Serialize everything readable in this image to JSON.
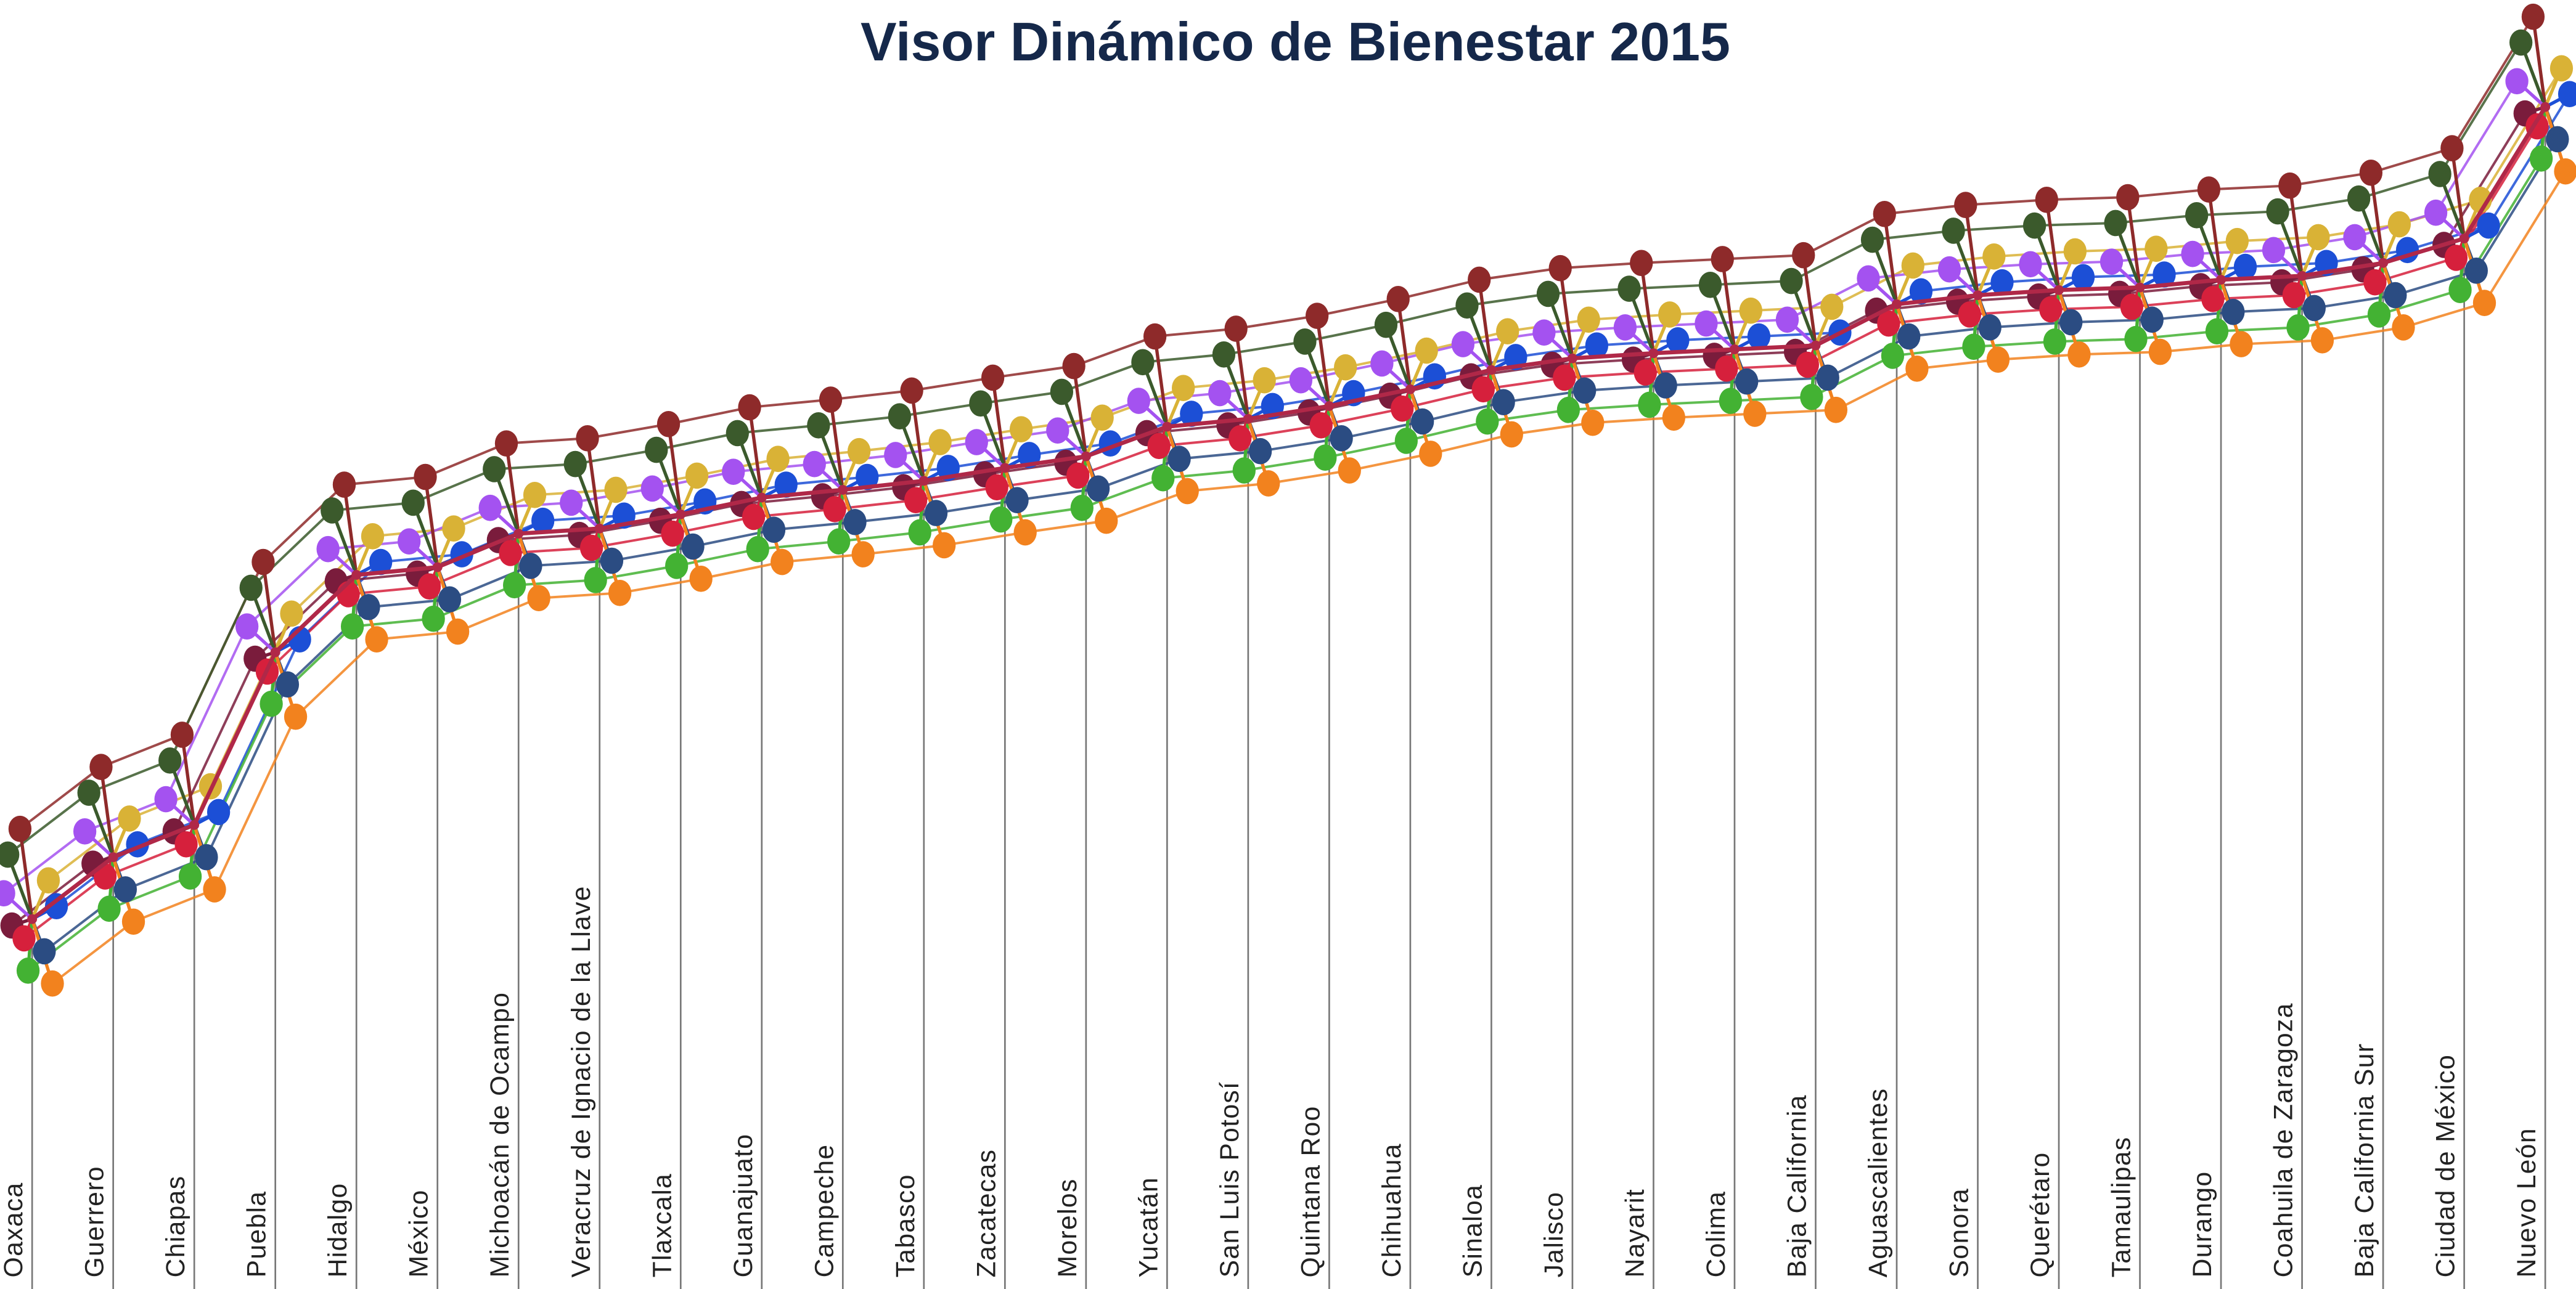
{
  "chart_data": {
    "type": "spoke",
    "title": "Visor Dinámico de Bienestar 2015",
    "categories": [
      "Oaxaca",
      "Guerrero",
      "Chiapas",
      "Puebla",
      "Hidalgo",
      "México",
      "Michoacán de Ocampo",
      "Veracruz de Ignacio de la Llave",
      "Tlaxcala",
      "Guanajuato",
      "Campeche",
      "Tabasco",
      "Zacatecas",
      "Morelos",
      "Yucatán",
      "San Luis Potosí",
      "Quintana Roo",
      "Chihuahua",
      "Sinaloa",
      "Jalisco",
      "Nayarit",
      "Colima",
      "Baja California",
      "Aguascalientes",
      "Sonora",
      "Querétaro",
      "Tamaulipas",
      "Durango",
      "Coahuila de Zaragoza",
      "Baja California Sur",
      "Ciudad de México",
      "Nuevo León"
    ],
    "values": [
      28.7,
      33.5,
      36,
      49.4,
      55.4,
      56,
      58.6,
      59,
      60.1,
      61.4,
      62,
      62.7,
      63.7,
      64.6,
      66.9,
      67.5,
      68.5,
      69.8,
      71.3,
      72.2,
      72.6,
      72.9,
      73.2,
      76.4,
      77.1,
      77.5,
      77.7,
      78.3,
      78.6,
      79.6,
      81.5,
      91.7
    ],
    "color": "#b02848",
    "ylim": [
      0,
      100
    ],
    "series": [
      {
        "color": "#8e2a2a",
        "values": [
          35.7,
          40.5,
          43,
          56.4,
          62.4,
          63,
          65.6,
          66,
          67.1,
          68.4,
          69,
          69.7,
          70.7,
          71.6,
          73.9,
          74.5,
          75.5,
          76.8,
          78.3,
          79.2,
          79.6,
          79.9,
          80.2,
          83.4,
          84.1,
          84.5,
          84.7,
          85.3,
          85.6,
          86.6,
          88.5,
          98.7
        ]
      },
      {
        "color": "#3b5a2c",
        "values": [
          33.7,
          38.5,
          41,
          54.4,
          60.4,
          61,
          63.6,
          64,
          65.1,
          66.4,
          67,
          67.7,
          68.7,
          69.6,
          71.9,
          72.5,
          73.5,
          74.8,
          76.3,
          77.2,
          77.6,
          77.9,
          78.2,
          81.4,
          82.1,
          82.5,
          82.7,
          83.3,
          83.6,
          84.6,
          86.5,
          96.7
        ]
      },
      {
        "color": "#d9b236",
        "values": [
          31.7,
          36.5,
          39,
          52.4,
          58.4,
          59,
          61.6,
          62,
          63.1,
          64.4,
          65,
          65.7,
          66.7,
          67.6,
          69.9,
          70.5,
          71.5,
          72.8,
          74.3,
          75.2,
          75.6,
          75.9,
          76.2,
          79.4,
          80.1,
          80.5,
          80.7,
          81.3,
          81.6,
          82.6,
          84.5,
          94.7
        ]
      },
      {
        "color": "#a452f0",
        "values": [
          30.7,
          35.5,
          38,
          51.4,
          57.4,
          58,
          60.6,
          61,
          62.1,
          63.4,
          64,
          64.7,
          65.7,
          66.6,
          68.9,
          69.5,
          70.5,
          71.8,
          73.3,
          74.2,
          74.6,
          74.9,
          75.2,
          78.4,
          79.1,
          79.5,
          79.7,
          80.3,
          80.6,
          81.6,
          83.5,
          93.7
        ]
      },
      {
        "color": "#1c4fd6",
        "values": [
          29.7,
          34.5,
          37,
          50.4,
          56.4,
          57,
          59.6,
          60,
          61.1,
          62.4,
          63,
          63.7,
          64.7,
          65.6,
          67.9,
          68.5,
          69.5,
          70.8,
          72.3,
          73.2,
          73.6,
          73.9,
          74.2,
          77.4,
          78.1,
          78.5,
          78.7,
          79.3,
          79.6,
          80.6,
          82.5,
          92.7
        ]
      },
      {
        "color": "#7a1c3c",
        "values": [
          28.2,
          33,
          35.5,
          48.9,
          54.9,
          55.5,
          58.1,
          58.5,
          59.6,
          60.9,
          61.5,
          62.2,
          63.2,
          64.1,
          66.4,
          67,
          68,
          69.3,
          70.8,
          71.7,
          72.1,
          72.4,
          72.7,
          75.9,
          76.6,
          77,
          77.2,
          77.8,
          78.1,
          79.1,
          81,
          91.2
        ]
      },
      {
        "color": "#d6203c",
        "values": [
          27.2,
          32,
          34.5,
          47.9,
          53.9,
          54.5,
          57.1,
          57.5,
          58.6,
          59.9,
          60.5,
          61.2,
          62.2,
          63.1,
          65.4,
          66,
          67,
          68.3,
          69.8,
          70.7,
          71.1,
          71.4,
          71.7,
          74.9,
          75.6,
          76,
          76.2,
          76.8,
          77.1,
          78.1,
          80,
          90.2
        ]
      },
      {
        "color": "#2b4c82",
        "values": [
          26.2,
          31,
          33.5,
          46.9,
          52.9,
          53.5,
          56.1,
          56.5,
          57.6,
          58.9,
          59.5,
          60.2,
          61.2,
          62.1,
          64.4,
          65,
          66,
          67.3,
          68.8,
          69.7,
          70.1,
          70.4,
          70.7,
          73.9,
          74.6,
          75,
          75.2,
          75.8,
          76.1,
          77.1,
          79,
          89.2
        ]
      },
      {
        "color": "#43b233",
        "values": [
          24.7,
          29.5,
          32,
          45.4,
          51.4,
          52,
          54.6,
          55,
          56.1,
          57.4,
          58,
          58.7,
          59.7,
          60.6,
          62.9,
          63.5,
          64.5,
          65.8,
          67.3,
          68.2,
          68.6,
          68.9,
          69.2,
          72.4,
          73.1,
          73.5,
          73.7,
          74.3,
          74.6,
          75.6,
          77.5,
          87.7
        ]
      },
      {
        "color": "#f2821e",
        "values": [
          23.7,
          28.5,
          31,
          44.4,
          50.4,
          51,
          53.6,
          54,
          55.1,
          56.4,
          57,
          57.7,
          58.7,
          59.6,
          61.9,
          62.5,
          63.5,
          64.8,
          66.3,
          67.2,
          67.6,
          67.9,
          68.2,
          71.4,
          72.1,
          72.5,
          72.7,
          73.3,
          73.6,
          74.6,
          76.5,
          86.7
        ]
      }
    ]
  }
}
